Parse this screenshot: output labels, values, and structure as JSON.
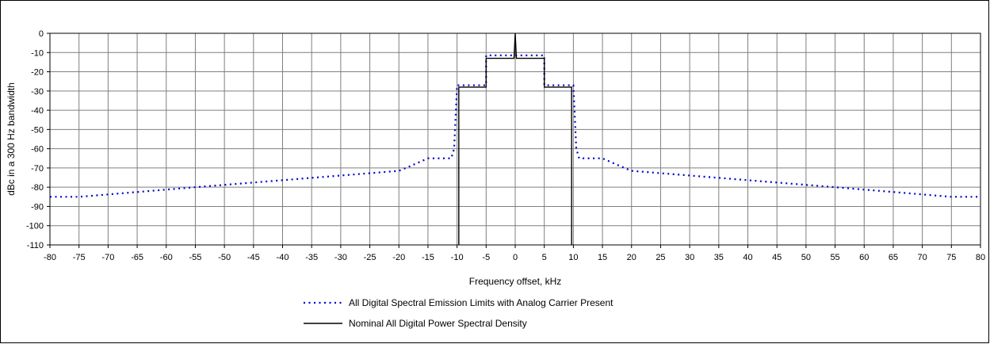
{
  "chart_data": {
    "type": "line",
    "title": "",
    "xlabel": "Frequency offset, kHz",
    "ylabel": "dBc in a 300 Hz bandwidth",
    "xlim": [
      -80,
      80
    ],
    "ylim": [
      -110,
      0
    ],
    "x_ticks": [
      -80,
      -75,
      -70,
      -65,
      -60,
      -55,
      -50,
      -45,
      -40,
      -35,
      -30,
      -25,
      -20,
      -15,
      -10,
      -5,
      0,
      5,
      10,
      15,
      20,
      25,
      30,
      35,
      40,
      45,
      50,
      55,
      60,
      65,
      70,
      75,
      80
    ],
    "y_ticks": [
      0,
      -10,
      -20,
      -30,
      -40,
      -50,
      -60,
      -70,
      -80,
      -90,
      -100,
      -110
    ],
    "grid": true,
    "legend_position": "bottom-center",
    "series": [
      {
        "name": "All Digital Spectral Emission Limits with Analog Carrier Present",
        "style": "dotted",
        "color": "#0000CC",
        "points": [
          [
            -80,
            -85
          ],
          [
            -75,
            -85
          ],
          [
            -55,
            -80
          ],
          [
            -20,
            -71.5
          ],
          [
            -18,
            -69
          ],
          [
            -15,
            -65
          ],
          [
            -11,
            -65
          ],
          [
            -10.5,
            -60
          ],
          [
            -10,
            -27
          ],
          [
            -5,
            -27
          ],
          [
            -5,
            -11.5
          ],
          [
            5,
            -11.5
          ],
          [
            5,
            -27
          ],
          [
            10,
            -27
          ],
          [
            10.5,
            -60
          ],
          [
            11,
            -65
          ],
          [
            15,
            -65
          ],
          [
            18,
            -69
          ],
          [
            20,
            -71.5
          ],
          [
            55,
            -80
          ],
          [
            75,
            -85
          ],
          [
            80,
            -85
          ]
        ]
      },
      {
        "name": "Nominal All Digital Power Spectral Density",
        "style": "solid",
        "color": "#000000",
        "points": [
          [
            -9.7,
            -110
          ],
          [
            -9.7,
            -28
          ],
          [
            -5,
            -28
          ],
          [
            -5,
            -13
          ],
          [
            -0.2,
            -13
          ],
          [
            0,
            0
          ],
          [
            0.2,
            -13
          ],
          [
            5,
            -13
          ],
          [
            5,
            -28
          ],
          [
            9.7,
            -28
          ],
          [
            9.7,
            -110
          ]
        ]
      }
    ]
  }
}
